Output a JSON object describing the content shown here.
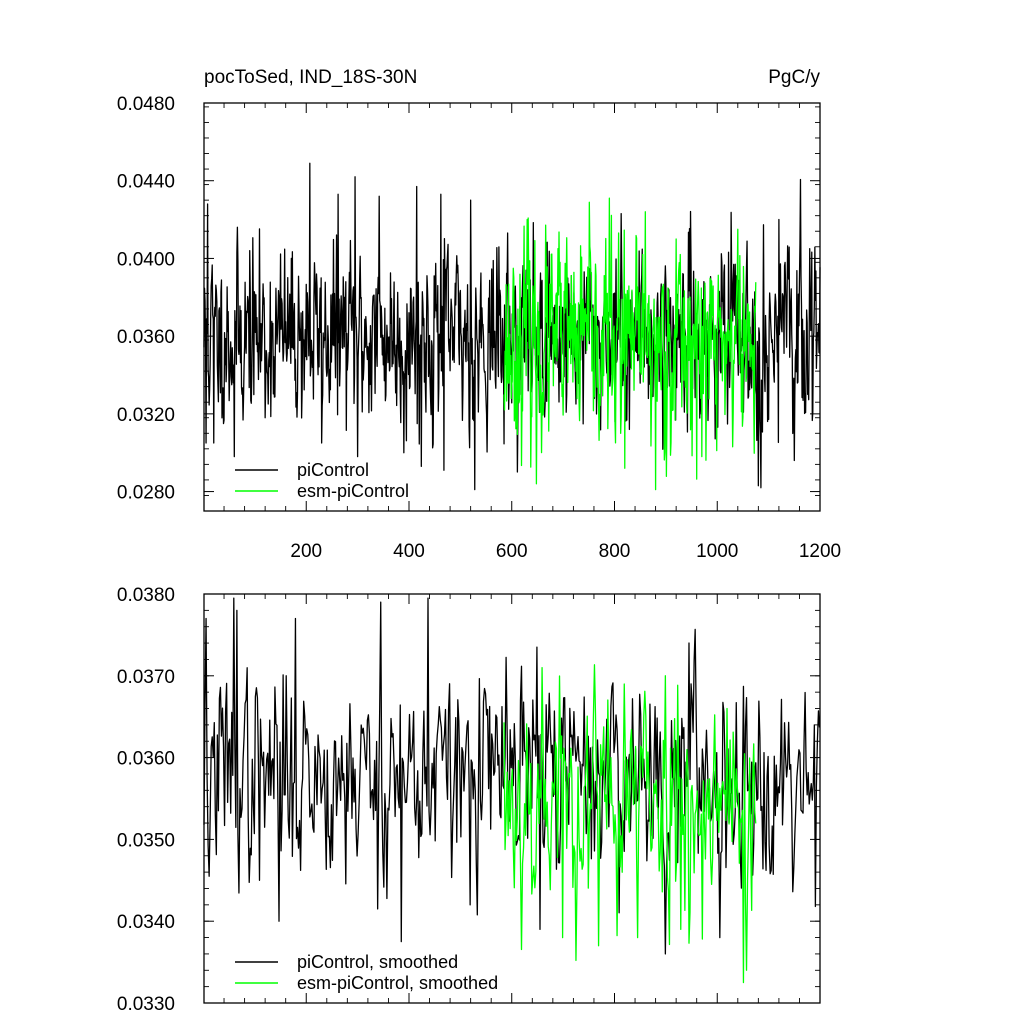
{
  "chart_data": [
    {
      "type": "line",
      "title": "pocToSed, IND_18S-30N",
      "units": "PgC/y",
      "xlim": [
        1,
        1200
      ],
      "ylim": [
        0.027,
        0.048
      ],
      "x_tick_values": [
        200,
        400,
        600,
        800,
        1000,
        1200
      ],
      "x_tick_labels": [
        "200",
        "400",
        "600",
        "800",
        "1000",
        "1200"
      ],
      "y_tick_values": [
        0.028,
        0.032,
        0.036,
        0.04,
        0.044,
        0.048
      ],
      "y_tick_labels": [
        "0.0280",
        "0.0320",
        "0.0360",
        "0.0400",
        "0.0440",
        "0.0480"
      ],
      "legend_position": "bottom-left",
      "series": [
        {
          "name": "piControl",
          "color": "#000000",
          "x_start": 1,
          "x_end": 1200,
          "mean": 0.036,
          "noise_sd": 0.0022,
          "seed": 11,
          "features": [
            {
              "x": 5,
              "y": 0.0305
            },
            {
              "x": 8,
              "y": 0.0428
            },
            {
              "x": 20,
              "y": 0.0305
            },
            {
              "x": 60,
              "y": 0.0298
            },
            {
              "x": 90,
              "y": 0.0404
            },
            {
              "x": 120,
              "y": 0.0318
            },
            {
              "x": 207,
              "y": 0.0449
            },
            {
              "x": 230,
              "y": 0.0305
            },
            {
              "x": 262,
              "y": 0.0433
            },
            {
              "x": 295,
              "y": 0.0442
            },
            {
              "x": 300,
              "y": 0.0298
            },
            {
              "x": 342,
              "y": 0.0432
            },
            {
              "x": 390,
              "y": 0.03
            },
            {
              "x": 415,
              "y": 0.0437
            },
            {
              "x": 424,
              "y": 0.0293
            },
            {
              "x": 462,
              "y": 0.0433
            },
            {
              "x": 468,
              "y": 0.0291
            },
            {
              "x": 520,
              "y": 0.043
            },
            {
              "x": 528,
              "y": 0.0281
            },
            {
              "x": 1080,
              "y": 0.0283
            },
            {
              "x": 1085,
              "y": 0.0282
            },
            {
              "x": 1120,
              "y": 0.042
            },
            {
              "x": 1150,
              "y": 0.0296
            },
            {
              "x": 1180,
              "y": 0.0405
            }
          ]
        },
        {
          "name": "esm-piControl",
          "color": "#00ff00",
          "x_start": 585,
          "x_end": 1075,
          "mean": 0.0356,
          "noise_sd": 0.0025,
          "seed": 23,
          "features": [
            {
              "x": 630,
              "y": 0.042
            },
            {
              "x": 648,
              "y": 0.0284
            },
            {
              "x": 690,
              "y": 0.0405
            },
            {
              "x": 790,
              "y": 0.0431
            },
            {
              "x": 820,
              "y": 0.0292
            },
            {
              "x": 860,
              "y": 0.0424
            },
            {
              "x": 880,
              "y": 0.0281
            },
            {
              "x": 920,
              "y": 0.041
            },
            {
              "x": 970,
              "y": 0.0298
            },
            {
              "x": 1040,
              "y": 0.0415
            }
          ]
        }
      ]
    },
    {
      "type": "line",
      "title": "",
      "units": "",
      "xlim": [
        1,
        1200
      ],
      "ylim": [
        0.033,
        0.038
      ],
      "x_tick_values": [
        200,
        400,
        600,
        800,
        1000,
        1200
      ],
      "x_tick_labels": [],
      "y_tick_values": [
        0.033,
        0.034,
        0.035,
        0.036,
        0.037,
        0.038
      ],
      "y_tick_labels": [
        "0.0330",
        "0.0340",
        "0.0350",
        "0.0360",
        "0.0370",
        "0.0380"
      ],
      "legend_position": "bottom-left",
      "series": [
        {
          "name": "piControl, smoothed",
          "color": "#000000",
          "x_start": 1,
          "x_end": 1200,
          "step": 2,
          "mean": 0.0358,
          "noise_sd": 0.0006,
          "seed": 37,
          "features": [
            {
              "x": 5,
              "y": 0.0377
            },
            {
              "x": 12,
              "y": 0.03455
            },
            {
              "x": 60,
              "y": 0.03795
            },
            {
              "x": 66,
              "y": 0.0378
            },
            {
              "x": 110,
              "y": 0.0345
            },
            {
              "x": 148,
              "y": 0.034
            },
            {
              "x": 180,
              "y": 0.0377
            },
            {
              "x": 340,
              "y": 0.03415
            },
            {
              "x": 345,
              "y": 0.0379
            },
            {
              "x": 385,
              "y": 0.03375
            },
            {
              "x": 438,
              "y": 0.03795
            },
            {
              "x": 520,
              "y": 0.0342
            },
            {
              "x": 650,
              "y": 0.03735
            },
            {
              "x": 655,
              "y": 0.0339
            },
            {
              "x": 900,
              "y": 0.0336
            },
            {
              "x": 945,
              "y": 0.0374
            },
            {
              "x": 1005,
              "y": 0.0338
            },
            {
              "x": 1190,
              "y": 0.0364
            }
          ]
        },
        {
          "name": "esm-piControl, smoothed",
          "color": "#00ff00",
          "x_start": 585,
          "x_end": 1075,
          "step": 2,
          "mean": 0.0355,
          "noise_sd": 0.0007,
          "seed": 53,
          "features": [
            {
              "x": 660,
              "y": 0.0371
            },
            {
              "x": 700,
              "y": 0.0338
            },
            {
              "x": 770,
              "y": 0.0337
            },
            {
              "x": 820,
              "y": 0.0369
            },
            {
              "x": 845,
              "y": 0.0338
            },
            {
              "x": 900,
              "y": 0.037
            },
            {
              "x": 930,
              "y": 0.0339
            },
            {
              "x": 1020,
              "y": 0.0366
            },
            {
              "x": 1052,
              "y": 0.03325
            },
            {
              "x": 1058,
              "y": 0.0334
            }
          ]
        }
      ]
    }
  ]
}
